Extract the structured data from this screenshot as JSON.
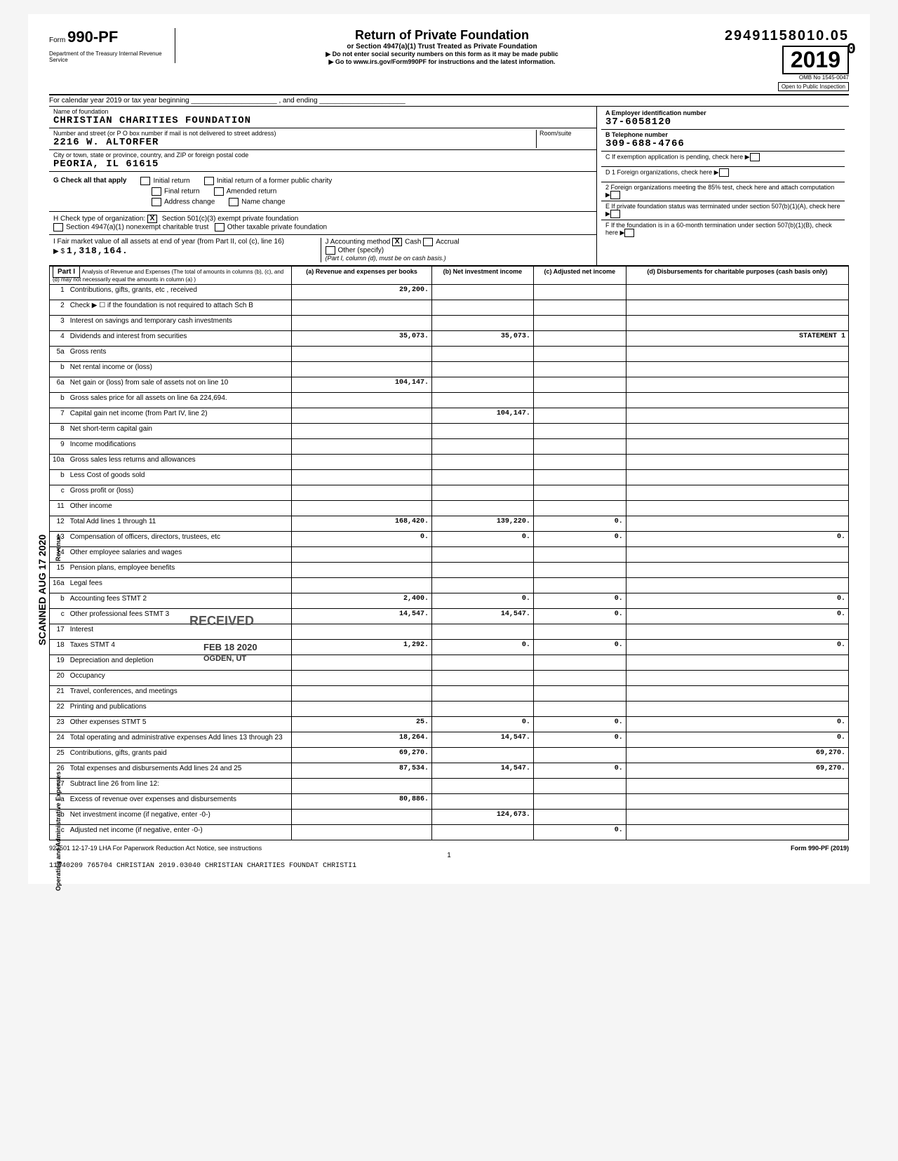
{
  "stamp_number": "29491158010.05",
  "trailing_stamp_char": "0",
  "form": {
    "number_prefix": "Form ",
    "number": "990-PF",
    "dept": "Department of the Treasury\nInternal Revenue Service",
    "title": "Return of Private Foundation",
    "subtitle": "or Section 4947(a)(1) Trust Treated as Private Foundation",
    "warn1": "▶ Do not enter social security numbers on this form as it may be made public",
    "warn2": "▶ Go to www.irs.gov/Form990PF for instructions and the latest information.",
    "omb": "OMB No 1545-0047",
    "year": "2019",
    "open": "Open to Public Inspection"
  },
  "cy": "For calendar year 2019 or tax year beginning ______________________ , and ending ______________________",
  "entity": {
    "name_label": "Name of foundation",
    "name": "CHRISTIAN CHARITIES FOUNDATION",
    "addr_label": "Number and street (or P O  box number if mail is not delivered to street address)",
    "addr": "2216 W. ALTORFER",
    "room_label": "Room/suite",
    "city_label": "City or town, state or province, country, and ZIP or foreign postal code",
    "city": "PEORIA, IL   61615",
    "ein_label": "A Employer identification number",
    "ein": "37-6058120",
    "phone_label": "B Telephone number",
    "phone": "309-688-4766",
    "c_label": "C If exemption application is pending, check here",
    "d1": "D 1  Foreign organizations, check here",
    "d2": "2  Foreign organizations meeting the 85% test, check here and attach computation",
    "e": "E  If private foundation status was terminated under section 507(b)(1)(A), check here",
    "f": "F  If the foundation is in a 60-month termination under section 507(b)(1)(B), check here"
  },
  "g": {
    "label": "G  Check all that apply",
    "opts": [
      "Initial return",
      "Final return",
      "Address change",
      "Initial return of a former public charity",
      "Amended return",
      "Name change"
    ]
  },
  "h": {
    "label": "H  Check type of organization:",
    "opt1": "Section 501(c)(3) exempt private foundation",
    "opt2": "Section 4947(a)(1) nonexempt charitable trust",
    "opt3": "Other taxable private foundation",
    "checked": "X"
  },
  "i": {
    "label": "I  Fair market value of all assets at end of year (from Part II, col (c), line 16)",
    "arrow": "▶ $",
    "value": "1,318,164."
  },
  "j": {
    "label": "J  Accounting method",
    "cash": "Cash",
    "cash_x": "X",
    "accrual": "Accrual",
    "other": "Other (specify)",
    "note": "(Part I, column (d), must be on cash basis.)"
  },
  "part1": {
    "header": "Part I",
    "desc": "Analysis of Revenue and Expenses (The total of amounts in columns (b), (c), and (d) may not necessarily equal the amounts in column (a) )",
    "cols": [
      "(a) Revenue and expenses per books",
      "(b) Net investment income",
      "(c) Adjusted net income",
      "(d) Disbursements for charitable purposes (cash basis only)"
    ]
  },
  "scanned": "SCANNED AUG 17 2020",
  "received": "RECEIVED",
  "received_date": "FEB 18 2020",
  "received_loc": "OGDEN, UT",
  "rows": [
    {
      "n": "1",
      "d": "Contributions, gifts, grants, etc , received",
      "a": "29,200.",
      "b": "",
      "c": "",
      "dd": ""
    },
    {
      "n": "2",
      "d": "Check ▶ ☐ if the foundation is not required to attach Sch B",
      "a": "",
      "b": "",
      "c": "",
      "dd": ""
    },
    {
      "n": "3",
      "d": "Interest on savings and temporary cash investments",
      "a": "",
      "b": "",
      "c": "",
      "dd": ""
    },
    {
      "n": "4",
      "d": "Dividends and interest from securities",
      "a": "35,073.",
      "b": "35,073.",
      "c": "",
      "dd": "STATEMENT 1"
    },
    {
      "n": "5a",
      "d": "Gross rents",
      "a": "",
      "b": "",
      "c": "",
      "dd": ""
    },
    {
      "n": "b",
      "d": "Net rental income or (loss)",
      "a": "",
      "b": "",
      "c": "",
      "dd": ""
    },
    {
      "n": "6a",
      "d": "Net gain or (loss) from sale of assets not on line 10",
      "a": "104,147.",
      "b": "",
      "c": "",
      "dd": ""
    },
    {
      "n": "b",
      "d": "Gross sales price for all assets on line 6a            224,694.",
      "a": "",
      "b": "",
      "c": "",
      "dd": ""
    },
    {
      "n": "7",
      "d": "Capital gain net income (from Part IV, line 2)",
      "a": "",
      "b": "104,147.",
      "c": "",
      "dd": ""
    },
    {
      "n": "8",
      "d": "Net short-term capital gain",
      "a": "",
      "b": "",
      "c": "",
      "dd": ""
    },
    {
      "n": "9",
      "d": "Income modifications",
      "a": "",
      "b": "",
      "c": "",
      "dd": ""
    },
    {
      "n": "10a",
      "d": "Gross sales less returns and allowances",
      "a": "",
      "b": "",
      "c": "",
      "dd": ""
    },
    {
      "n": "b",
      "d": "Less Cost of goods sold",
      "a": "",
      "b": "",
      "c": "",
      "dd": ""
    },
    {
      "n": "c",
      "d": "Gross profit or (loss)",
      "a": "",
      "b": "",
      "c": "",
      "dd": ""
    },
    {
      "n": "11",
      "d": "Other income",
      "a": "",
      "b": "",
      "c": "",
      "dd": ""
    },
    {
      "n": "12",
      "d": "Total  Add lines 1 through 11",
      "a": "168,420.",
      "b": "139,220.",
      "c": "0.",
      "dd": ""
    },
    {
      "n": "13",
      "d": "Compensation of officers, directors, trustees, etc",
      "a": "0.",
      "b": "0.",
      "c": "0.",
      "dd": "0."
    },
    {
      "n": "14",
      "d": "Other employee salaries and wages",
      "a": "",
      "b": "",
      "c": "",
      "dd": ""
    },
    {
      "n": "15",
      "d": "Pension plans, employee benefits",
      "a": "",
      "b": "",
      "c": "",
      "dd": ""
    },
    {
      "n": "16a",
      "d": "Legal fees",
      "a": "",
      "b": "",
      "c": "",
      "dd": ""
    },
    {
      "n": "b",
      "d": "Accounting fees                       STMT 2",
      "a": "2,400.",
      "b": "0.",
      "c": "0.",
      "dd": "0."
    },
    {
      "n": "c",
      "d": "Other professional fees          STMT 3",
      "a": "14,547.",
      "b": "14,547.",
      "c": "0.",
      "dd": "0."
    },
    {
      "n": "17",
      "d": "Interest",
      "a": "",
      "b": "",
      "c": "",
      "dd": ""
    },
    {
      "n": "18",
      "d": "Taxes                                        STMT 4",
      "a": "1,292.",
      "b": "0.",
      "c": "0.",
      "dd": "0."
    },
    {
      "n": "19",
      "d": "Depreciation and depletion",
      "a": "",
      "b": "",
      "c": "",
      "dd": ""
    },
    {
      "n": "20",
      "d": "Occupancy",
      "a": "",
      "b": "",
      "c": "",
      "dd": ""
    },
    {
      "n": "21",
      "d": "Travel, conferences, and meetings",
      "a": "",
      "b": "",
      "c": "",
      "dd": ""
    },
    {
      "n": "22",
      "d": "Printing and publications",
      "a": "",
      "b": "",
      "c": "",
      "dd": ""
    },
    {
      "n": "23",
      "d": "Other expenses                        STMT 5",
      "a": "25.",
      "b": "0.",
      "c": "0.",
      "dd": "0."
    },
    {
      "n": "24",
      "d": "Total operating and administrative expenses  Add lines 13 through 23",
      "a": "18,264.",
      "b": "14,547.",
      "c": "0.",
      "dd": "0."
    },
    {
      "n": "25",
      "d": "Contributions, gifts, grants paid",
      "a": "69,270.",
      "b": "",
      "c": "",
      "dd": "69,270."
    },
    {
      "n": "26",
      "d": "Total expenses and disbursements Add lines 24 and 25",
      "a": "87,534.",
      "b": "14,547.",
      "c": "0.",
      "dd": "69,270."
    },
    {
      "n": "27",
      "d": "Subtract line 26 from line 12:",
      "a": "",
      "b": "",
      "c": "",
      "dd": ""
    },
    {
      "n": "a",
      "d": "Excess of revenue over expenses and disbursements",
      "a": "80,886.",
      "b": "",
      "c": "",
      "dd": ""
    },
    {
      "n": "b",
      "d": "Net investment income (if negative, enter -0-)",
      "a": "",
      "b": "124,673.",
      "c": "",
      "dd": ""
    },
    {
      "n": "c",
      "d": "Adjusted net income (if negative, enter -0-)",
      "a": "",
      "b": "",
      "c": "0.",
      "dd": ""
    }
  ],
  "footer": {
    "left": "923501 12-17-19   LHA  For Paperwork Reduction Act Notice, see instructions",
    "right": "Form 990-PF (2019)",
    "page": "1",
    "bottom": "11540209 765704 CHRISTIAN    2019.03040 CHRISTIAN CHARITIES FOUNDAT CHRISTI1"
  },
  "vert_revenue": "Revenue",
  "vert_opadmin": "Operating and Administrative Expenses"
}
